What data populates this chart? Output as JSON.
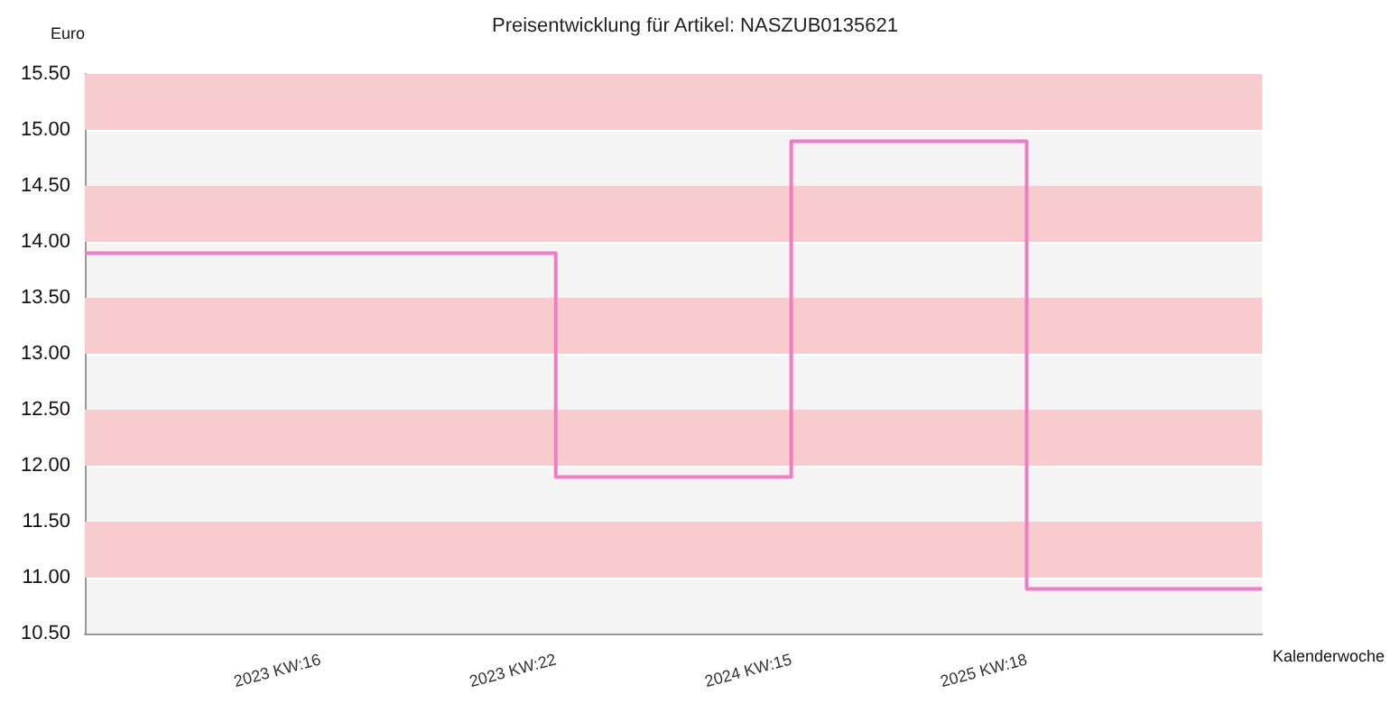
{
  "chart_data": {
    "type": "step",
    "title": "Preisentwicklung für Artikel: NASZUB0135621",
    "xlabel": "Kalenderwoche",
    "ylabel": "Euro",
    "categories": [
      null,
      "2023 KW:16",
      "2023 KW:22",
      "2024 KW:15",
      "2025 KW:18",
      null
    ],
    "series": [
      {
        "color": "#f07cc4",
        "values": [
          13.9,
          13.9,
          11.9,
          14.9,
          10.9,
          10.9
        ]
      }
    ],
    "ylim": [
      10.5,
      15.5
    ],
    "yticks": [
      {
        "value": 10.5,
        "label": "10.50"
      },
      {
        "value": 11,
        "label": "11.00"
      },
      {
        "value": 11.5,
        "label": "11.50"
      },
      {
        "value": 12,
        "label": "12.00"
      },
      {
        "value": 12.5,
        "label": "12.50"
      },
      {
        "value": 13,
        "label": "13.00"
      },
      {
        "value": 13.5,
        "label": "13.50"
      },
      {
        "value": 14,
        "label": "14.00"
      },
      {
        "value": 14.5,
        "label": "14.50"
      },
      {
        "value": 15,
        "label": "15.00"
      },
      {
        "value": 15.5,
        "label": "15.50"
      }
    ],
    "bands": [
      {
        "axis": "y",
        "from": 11,
        "to": 11.5,
        "color": "#f8cccc"
      },
      {
        "axis": "y",
        "from": 12,
        "to": 12.5,
        "color": "#f8cccc"
      },
      {
        "axis": "y",
        "from": 13,
        "to": 13.5,
        "color": "#f8cccc"
      },
      {
        "axis": "y",
        "from": 14,
        "to": 14.5,
        "color": "#f8cccc"
      },
      {
        "axis": "y",
        "from": 15,
        "to": 15.5,
        "color": "#f8cccc"
      }
    ],
    "grid": "y",
    "marker": "none",
    "line_style": "solid"
  }
}
